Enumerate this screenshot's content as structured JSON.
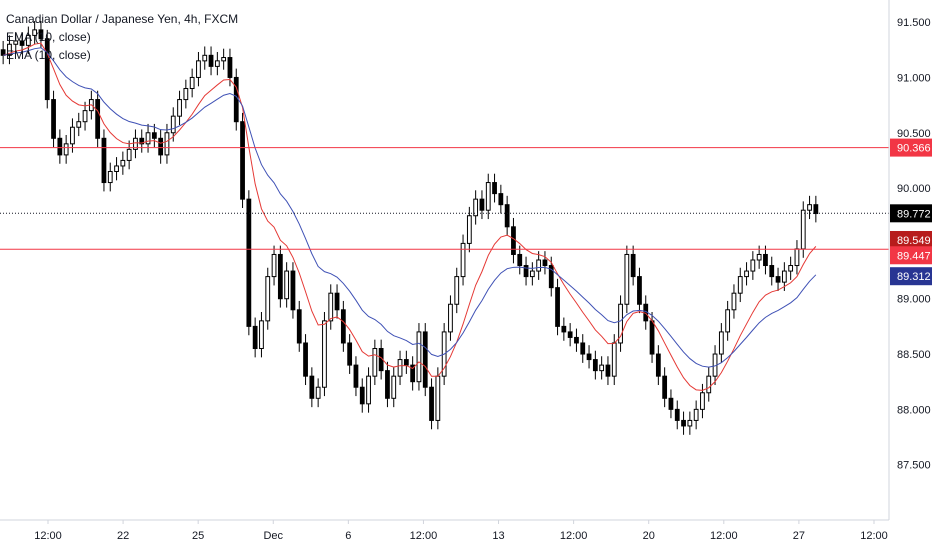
{
  "legend": {
    "title": "Canadian Dollar / Japanese Yen, 4h, FXCM",
    "ema10": "EMA (10, close)",
    "ema20": "EMA (10, close)"
  },
  "colors": {
    "candle": "#000000",
    "hline": "#f23645",
    "ema_fast": "#e53935",
    "ema_slow": "#3f51b5",
    "last_price_badge": "#000000",
    "support_badge": "#f23645",
    "fast_badge": "#b71c1c",
    "slow_badge": "#283593"
  },
  "chart_data": {
    "type": "candlestick",
    "instrument": "Canadian Dollar / Japanese Yen",
    "timeframe": "4h",
    "source": "FXCM",
    "y_ticks": [
      "91.500",
      "91.000",
      "90.500",
      "90.000",
      "89.500",
      "89.000",
      "88.500",
      "88.000",
      "87.500"
    ],
    "x_ticks": [
      "12:00",
      "22",
      "25",
      "Dec",
      "6",
      "12:00",
      "13",
      "12:00",
      "20",
      "12:00",
      "27",
      "12:00"
    ],
    "ylim": [
      87.0,
      91.7
    ],
    "price_lines": [
      90.366,
      89.447
    ],
    "last_price": 89.772,
    "badges": [
      {
        "label": "90.366",
        "role": "resistance"
      },
      {
        "label": "89.772",
        "role": "last"
      },
      {
        "label": "89.549",
        "role": "ema-fast"
      },
      {
        "label": "89.447",
        "role": "support"
      },
      {
        "label": "89.312",
        "role": "ema-slow"
      }
    ],
    "close": [
      91.2,
      91.3,
      91.33,
      91.29,
      91.38,
      91.43,
      91.35,
      90.8,
      90.45,
      90.3,
      90.4,
      90.55,
      90.6,
      90.7,
      90.8,
      90.45,
      90.05,
      90.15,
      90.2,
      90.25,
      90.35,
      90.45,
      90.4,
      90.5,
      90.45,
      90.3,
      90.5,
      90.65,
      90.8,
      90.9,
      91.0,
      91.15,
      91.2,
      91.1,
      91.15,
      91.18,
      91.0,
      90.6,
      89.9,
      88.75,
      88.55,
      88.8,
      89.2,
      89.4,
      89.0,
      89.25,
      88.9,
      88.6,
      88.3,
      88.1,
      88.2,
      88.8,
      89.05,
      88.9,
      88.6,
      88.4,
      88.2,
      88.05,
      88.3,
      88.55,
      88.35,
      88.1,
      88.3,
      88.45,
      88.4,
      88.25,
      88.7,
      88.2,
      87.9,
      88.3,
      88.7,
      88.95,
      89.2,
      89.5,
      89.75,
      89.9,
      89.8,
      90.05,
      89.95,
      89.85,
      89.65,
      89.4,
      89.3,
      89.2,
      89.25,
      89.35,
      89.3,
      89.1,
      88.75,
      88.7,
      88.65,
      88.6,
      88.5,
      88.45,
      88.35,
      88.4,
      88.3,
      88.6,
      88.95,
      89.4,
      89.2,
      88.95,
      88.8,
      88.5,
      88.3,
      88.1,
      88.0,
      87.9,
      87.85,
      87.9,
      88.0,
      88.15,
      88.3,
      88.5,
      88.7,
      88.9,
      89.05,
      89.2,
      89.25,
      89.35,
      89.4,
      89.3,
      89.2,
      89.15,
      89.25,
      89.3,
      89.45,
      89.8,
      89.85,
      89.77
    ],
    "ema_fast_name": "EMA (10, close)",
    "ema_slow_name": "EMA (10, close)"
  }
}
